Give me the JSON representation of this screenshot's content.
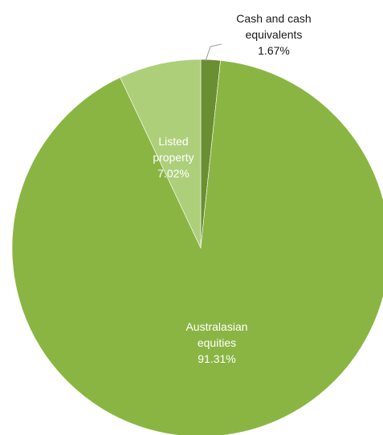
{
  "chart_data": {
    "type": "pie",
    "start_angle_deg": 0,
    "direction": "clockwise",
    "legend": "none",
    "slices": [
      {
        "key": "cash",
        "label_lines": [
          "Cash and cash",
          "equivalents"
        ],
        "value": 1.67,
        "value_label": "1.67%",
        "color": "#6a8f32",
        "label_position": "outside"
      },
      {
        "key": "australasian",
        "label_lines": [
          "Australasian",
          "equities"
        ],
        "value": 91.31,
        "value_label": "91.31%",
        "color": "#8ab543",
        "label_position": "inside"
      },
      {
        "key": "listed",
        "label_lines": [
          "Listed",
          "property"
        ],
        "value": 7.02,
        "value_label": "7.02%",
        "color": "#aecf7a",
        "label_position": "inside"
      }
    ]
  }
}
